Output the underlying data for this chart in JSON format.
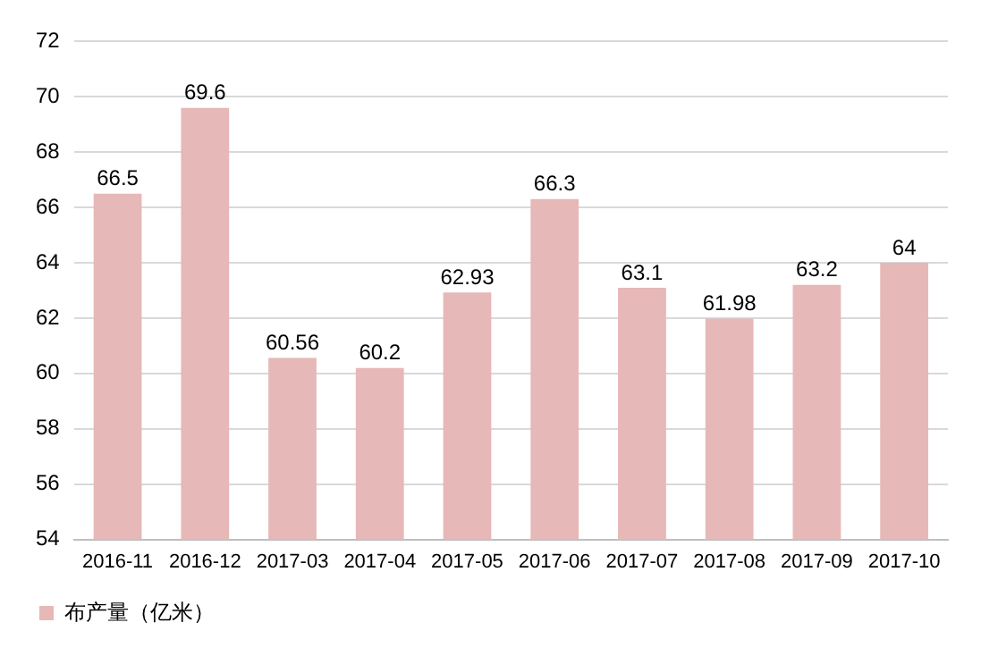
{
  "chart_data": {
    "type": "bar",
    "categories": [
      "2016-11",
      "2016-12",
      "2017-03",
      "2017-04",
      "2017-05",
      "2017-06",
      "2017-07",
      "2017-08",
      "2017-09",
      "2017-10"
    ],
    "series": [
      {
        "name": "布产量（亿米）",
        "color": "#e6b8b7",
        "values": [
          66.5,
          69.6,
          60.56,
          60.2,
          62.93,
          66.3,
          63.1,
          61.98,
          63.2,
          64
        ]
      }
    ],
    "ylim": [
      54,
      72
    ],
    "yticks": [
      54,
      56,
      58,
      60,
      62,
      64,
      66,
      68,
      70,
      72
    ],
    "grid": "y",
    "legend": "bottom",
    "data_labels": true
  }
}
